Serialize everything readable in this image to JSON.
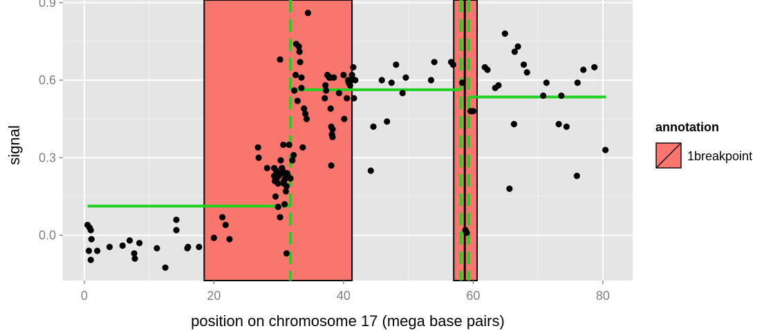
{
  "chart_data": {
    "type": "scatter",
    "xlabel": "position on chromosome 17 (mega base pairs)",
    "ylabel": "signal",
    "xlim": [
      -3.3,
      84.6
    ],
    "ylim": [
      -0.175,
      0.91
    ],
    "x_ticks": [
      0,
      20,
      40,
      60,
      80
    ],
    "x_tick_labels": [
      "0",
      "20",
      "40",
      "60",
      "80"
    ],
    "y_ticks": [
      0.0,
      0.3,
      0.6,
      0.9
    ],
    "y_tick_labels": [
      "0.0",
      "0.3",
      "0.6",
      "0.9"
    ],
    "grid": true,
    "colors": {
      "panel": "#e5e5e5",
      "grid": "#ffffff",
      "annotation_fill": "#f8766d",
      "segment": "#1fd21f",
      "point": "#000000"
    },
    "annotations": [
      {
        "label": "1breakpoint",
        "xmin": 18.5,
        "xmax": 41.3
      },
      {
        "label": "1breakpoint",
        "xmin": 57.0,
        "xmax": 60.6
      }
    ],
    "breakpoints": [
      31.8,
      58.1,
      59.3
    ],
    "true_breakpoint": 58.7,
    "segments": [
      {
        "x0": 0.5,
        "x1": 31.8,
        "y": 0.113
      },
      {
        "x0": 31.8,
        "x1": 58.1,
        "y": 0.563
      },
      {
        "x0": 58.1,
        "x1": 59.3,
        "y": 0.012
      },
      {
        "x0": 59.3,
        "x1": 80.5,
        "y": 0.535
      }
    ],
    "points": [
      [
        0.5,
        0.04
      ],
      [
        0.7,
        -0.06
      ],
      [
        0.8,
        0.03
      ],
      [
        1.0,
        0.02
      ],
      [
        1.1,
        -0.015
      ],
      [
        1.0,
        -0.095
      ],
      [
        2.0,
        -0.06
      ],
      [
        3.9,
        -0.045
      ],
      [
        5.9,
        -0.04
      ],
      [
        7.0,
        -0.02
      ],
      [
        7.7,
        -0.07
      ],
      [
        7.8,
        -0.09
      ],
      [
        8.5,
        -0.03
      ],
      [
        11.2,
        -0.05
      ],
      [
        12.5,
        -0.125
      ],
      [
        14.2,
        0.06
      ],
      [
        14.2,
        0.02
      ],
      [
        15.9,
        -0.05
      ],
      [
        16.0,
        -0.045
      ],
      [
        17.7,
        -0.045
      ],
      [
        20.0,
        -0.01
      ],
      [
        21.3,
        0.07
      ],
      [
        21.8,
        0.04
      ],
      [
        22.4,
        -0.015
      ],
      [
        26.8,
        0.34
      ],
      [
        26.9,
        0.3
      ],
      [
        28.2,
        0.26
      ],
      [
        29.3,
        0.26
      ],
      [
        29.3,
        0.23
      ],
      [
        29.4,
        0.21
      ],
      [
        29.5,
        0.15
      ],
      [
        29.6,
        0.25
      ],
      [
        29.7,
        0.22
      ],
      [
        29.8,
        0.24
      ],
      [
        29.9,
        0.2
      ],
      [
        29.9,
        0.11
      ],
      [
        30.0,
        0.23
      ],
      [
        30.2,
        0.07
      ],
      [
        30.2,
        0.68
      ],
      [
        30.3,
        0.29
      ],
      [
        30.5,
        0.26
      ],
      [
        30.6,
        0.25
      ],
      [
        30.7,
        0.24
      ],
      [
        30.7,
        0.35
      ],
      [
        30.8,
        0.21
      ],
      [
        30.8,
        0.2
      ],
      [
        30.9,
        0.24
      ],
      [
        30.9,
        0.12
      ],
      [
        31.0,
        0.22
      ],
      [
        31.1,
        0.17
      ],
      [
        31.2,
        0.19
      ],
      [
        31.2,
        -0.07
      ],
      [
        31.3,
        0.24
      ],
      [
        31.4,
        0.23
      ],
      [
        31.6,
        0.35
      ],
      [
        31.8,
        0.22
      ],
      [
        32.1,
        0.29
      ],
      [
        32.3,
        0.31
      ],
      [
        32.4,
        0.56
      ],
      [
        32.6,
        0.62
      ],
      [
        32.7,
        0.74
      ],
      [
        32.9,
        0.52
      ],
      [
        33.1,
        0.73
      ],
      [
        33.2,
        0.71
      ],
      [
        33.3,
        0.67
      ],
      [
        33.5,
        0.61
      ],
      [
        33.5,
        0.57
      ],
      [
        33.7,
        0.34
      ],
      [
        33.9,
        0.49
      ],
      [
        34.1,
        0.47
      ],
      [
        34.3,
        0.45
      ],
      [
        34.5,
        0.86
      ],
      [
        37.1,
        0.53
      ],
      [
        37.2,
        0.58
      ],
      [
        37.3,
        0.56
      ],
      [
        37.5,
        0.62
      ],
      [
        37.8,
        0.61
      ],
      [
        38.0,
        0.61
      ],
      [
        38.0,
        0.49
      ],
      [
        38.1,
        0.42
      ],
      [
        38.1,
        0.27
      ],
      [
        38.2,
        0.39
      ],
      [
        38.3,
        0.41
      ],
      [
        38.3,
        0.38
      ],
      [
        38.5,
        0.61
      ],
      [
        39.3,
        0.55
      ],
      [
        40.0,
        0.62
      ],
      [
        40.1,
        0.45
      ],
      [
        40.5,
        0.53
      ],
      [
        40.7,
        0.6
      ],
      [
        40.8,
        0.59
      ],
      [
        41.0,
        0.58
      ],
      [
        41.2,
        0.6
      ],
      [
        41.3,
        0.62
      ],
      [
        41.5,
        0.65
      ],
      [
        41.6,
        0.53
      ],
      [
        41.8,
        0.6
      ],
      [
        44.2,
        0.25
      ],
      [
        44.6,
        0.42
      ],
      [
        45.9,
        0.6
      ],
      [
        46.7,
        0.44
      ],
      [
        47.4,
        0.59
      ],
      [
        48.1,
        0.66
      ],
      [
        49.1,
        0.55
      ],
      [
        49.6,
        0.61
      ],
      [
        53.5,
        0.6
      ],
      [
        54.0,
        0.67
      ],
      [
        56.6,
        0.67
      ],
      [
        56.9,
        0.66
      ],
      [
        58.3,
        0.59
      ],
      [
        58.8,
        0.02
      ],
      [
        59.0,
        0.01
      ],
      [
        59.6,
        0.48
      ],
      [
        60.0,
        0.48
      ],
      [
        61.8,
        0.65
      ],
      [
        62.2,
        0.64
      ],
      [
        63.4,
        0.57
      ],
      [
        63.9,
        0.58
      ],
      [
        64.9,
        0.78
      ],
      [
        65.6,
        0.18
      ],
      [
        66.3,
        0.43
      ],
      [
        66.4,
        0.71
      ],
      [
        66.9,
        0.73
      ],
      [
        67.8,
        0.66
      ],
      [
        68.3,
        0.63
      ],
      [
        70.8,
        0.54
      ],
      [
        71.3,
        0.59
      ],
      [
        73.2,
        0.43
      ],
      [
        73.6,
        0.54
      ],
      [
        74.4,
        0.42
      ],
      [
        76.0,
        0.23
      ],
      [
        76.1,
        0.59
      ],
      [
        77.0,
        0.64
      ],
      [
        78.7,
        0.65
      ],
      [
        80.4,
        0.33
      ]
    ]
  },
  "legend": {
    "title": "annotation",
    "items": [
      {
        "label": "1breakpoint"
      }
    ]
  }
}
